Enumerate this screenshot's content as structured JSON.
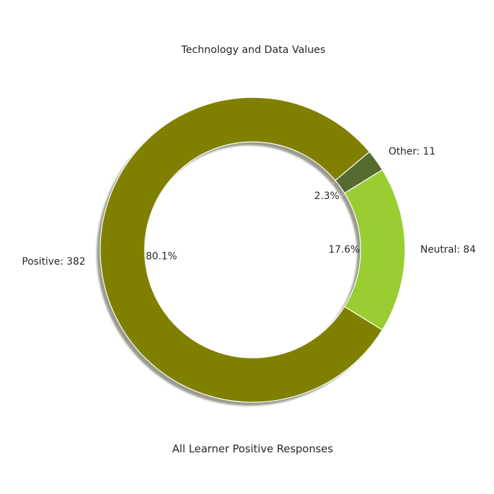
{
  "chart_data": {
    "type": "pie",
    "style": "donut",
    "title": "Technology and Data Values",
    "xlabel": "All Learner Positive Responses",
    "shadow": true,
    "slices": [
      {
        "label": "Positive",
        "value": 382,
        "outer_text": "Positive: 382",
        "pct_text": "80.1%",
        "color": "#808000"
      },
      {
        "label": "Neutral",
        "value": 84,
        "outer_text": "Neutral: 84",
        "pct_text": "17.6%",
        "color": "#9acd32"
      },
      {
        "label": "Other",
        "value": 11,
        "outer_text": "Other: 11",
        "pct_text": "2.3%",
        "color": "#556b2f"
      }
    ]
  }
}
